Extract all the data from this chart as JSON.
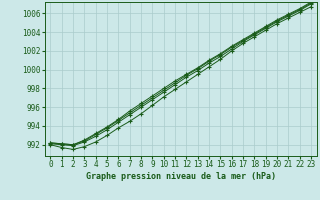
{
  "title": "Graphe pression niveau de la mer (hPa)",
  "background_color": "#cce8e8",
  "grid_color": "#aacccc",
  "line_color": "#1a5c1a",
  "xlim": [
    -0.5,
    23.5
  ],
  "ylim": [
    990.8,
    1007.2
  ],
  "yticks": [
    992,
    994,
    996,
    998,
    1000,
    1002,
    1004,
    1006
  ],
  "xticks": [
    0,
    1,
    2,
    3,
    4,
    5,
    6,
    7,
    8,
    9,
    10,
    11,
    12,
    13,
    14,
    15,
    16,
    17,
    18,
    19,
    20,
    21,
    22,
    23
  ],
  "series": [
    [
      992.0,
      991.7,
      991.5,
      991.8,
      992.3,
      993.0,
      993.8,
      994.5,
      995.3,
      996.2,
      997.1,
      997.9,
      998.7,
      999.5,
      1000.3,
      1001.1,
      1002.0,
      1002.8,
      1003.5,
      1004.2,
      1004.9,
      1005.5,
      1006.1,
      1006.7
    ],
    [
      992.1,
      992.0,
      991.9,
      992.3,
      992.9,
      993.6,
      994.4,
      995.2,
      996.0,
      996.8,
      997.6,
      998.4,
      999.2,
      999.9,
      1000.7,
      1001.4,
      1002.2,
      1003.0,
      1003.7,
      1004.4,
      1005.1,
      1005.7,
      1006.3,
      1007.0
    ],
    [
      992.2,
      992.1,
      992.0,
      992.4,
      993.1,
      993.8,
      994.6,
      995.4,
      996.2,
      997.0,
      997.8,
      998.6,
      999.4,
      1000.1,
      1000.9,
      1001.6,
      1002.4,
      1003.1,
      1003.8,
      1004.5,
      1005.2,
      1005.8,
      1006.4,
      1007.1
    ],
    [
      992.2,
      992.1,
      992.0,
      992.5,
      993.2,
      993.9,
      994.7,
      995.6,
      996.4,
      997.2,
      998.0,
      998.8,
      999.5,
      1000.2,
      1001.0,
      1001.7,
      1002.5,
      1003.2,
      1003.9,
      1004.6,
      1005.3,
      1005.9,
      1006.5,
      1007.2
    ]
  ],
  "xlabel_fontsize": 6,
  "tick_fontsize": 5.5
}
